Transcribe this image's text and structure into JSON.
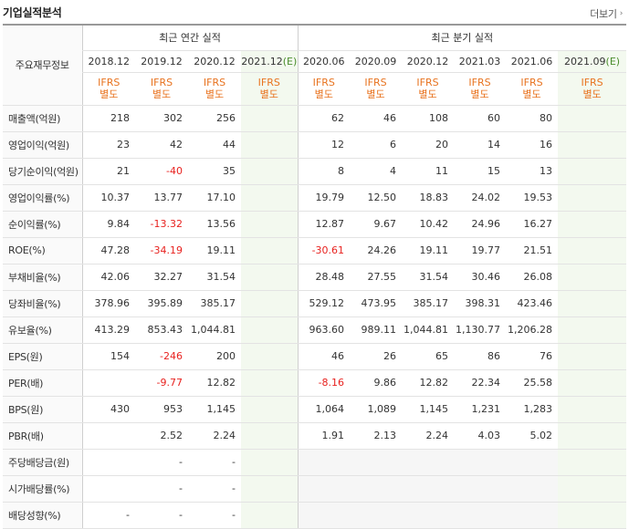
{
  "header": {
    "title": "기업실적분석",
    "more_label": "더보기",
    "more_icon": "chevron-right-icon"
  },
  "table": {
    "main_header": "주요재무정보",
    "annual_group": "최근 연간 실적",
    "quarter_group": "최근 분기 실적",
    "annual_periods": [
      "2018.12",
      "2019.12",
      "2020.12",
      "2021.12"
    ],
    "annual_est_mark": "(E)",
    "quarter_periods": [
      "2020.06",
      "2020.09",
      "2020.12",
      "2021.03",
      "2021.06",
      "2021.09"
    ],
    "quarter_est_mark": "(E)",
    "ifrs_line1": "IFRS",
    "ifrs_line2": "별도",
    "rows": [
      {
        "label": "매출액(억원)",
        "annual": [
          "218",
          "302",
          "256",
          ""
        ],
        "quarter": [
          "62",
          "46",
          "108",
          "60",
          "80",
          ""
        ]
      },
      {
        "label": "영업이익(억원)",
        "annual": [
          "23",
          "42",
          "44",
          ""
        ],
        "quarter": [
          "12",
          "6",
          "20",
          "14",
          "16",
          ""
        ]
      },
      {
        "label": "당기순이익(억원)",
        "annual": [
          "21",
          "-40",
          "35",
          ""
        ],
        "quarter": [
          "8",
          "4",
          "11",
          "15",
          "13",
          ""
        ]
      },
      {
        "label": "영업이익률(%)",
        "annual": [
          "10.37",
          "13.77",
          "17.10",
          ""
        ],
        "quarter": [
          "19.79",
          "12.50",
          "18.83",
          "24.02",
          "19.53",
          ""
        ]
      },
      {
        "label": "순이익률(%)",
        "annual": [
          "9.84",
          "-13.32",
          "13.56",
          ""
        ],
        "quarter": [
          "12.87",
          "9.67",
          "10.42",
          "24.96",
          "16.27",
          ""
        ]
      },
      {
        "label": "ROE(%)",
        "annual": [
          "47.28",
          "-34.19",
          "19.11",
          ""
        ],
        "quarter": [
          "-30.61",
          "24.26",
          "19.11",
          "19.77",
          "21.51",
          ""
        ]
      },
      {
        "label": "부채비율(%)",
        "annual": [
          "42.06",
          "32.27",
          "31.54",
          ""
        ],
        "quarter": [
          "28.48",
          "27.55",
          "31.54",
          "30.46",
          "26.08",
          ""
        ]
      },
      {
        "label": "당좌비율(%)",
        "annual": [
          "378.96",
          "395.89",
          "385.17",
          ""
        ],
        "quarter": [
          "529.12",
          "473.95",
          "385.17",
          "398.31",
          "423.46",
          ""
        ]
      },
      {
        "label": "유보율(%)",
        "annual": [
          "413.29",
          "853.43",
          "1,044.81",
          ""
        ],
        "quarter": [
          "963.60",
          "989.11",
          "1,044.81",
          "1,130.77",
          "1,206.28",
          ""
        ]
      },
      {
        "label": "EPS(원)",
        "annual": [
          "154",
          "-246",
          "200",
          ""
        ],
        "quarter": [
          "46",
          "26",
          "65",
          "86",
          "76",
          ""
        ]
      },
      {
        "label": "PER(배)",
        "annual": [
          "",
          "-9.77",
          "12.82",
          ""
        ],
        "quarter": [
          "-8.16",
          "9.86",
          "12.82",
          "22.34",
          "25.58",
          ""
        ]
      },
      {
        "label": "BPS(원)",
        "annual": [
          "430",
          "953",
          "1,145",
          ""
        ],
        "quarter": [
          "1,064",
          "1,089",
          "1,145",
          "1,231",
          "1,283",
          ""
        ]
      },
      {
        "label": "PBR(배)",
        "annual": [
          "",
          "2.52",
          "2.24",
          ""
        ],
        "quarter": [
          "1.91",
          "2.13",
          "2.24",
          "4.03",
          "5.02",
          ""
        ]
      },
      {
        "label": "주당배당금(원)",
        "annual": [
          "",
          "-",
          "-",
          ""
        ],
        "quarter": [
          "",
          "",
          "",
          "",
          "",
          ""
        ]
      },
      {
        "label": "시가배당률(%)",
        "annual": [
          "",
          "-",
          "-",
          ""
        ],
        "quarter": [
          "",
          "",
          "",
          "",
          "",
          ""
        ]
      },
      {
        "label": "배당성향(%)",
        "annual": [
          "-",
          "-",
          "-",
          ""
        ],
        "quarter": [
          "",
          "",
          "",
          "",
          "",
          ""
        ]
      }
    ],
    "group_breaks": [
      3,
      6,
      9,
      13
    ],
    "colors": {
      "negative": "#e8221f",
      "ifrs": "#e8731f",
      "estimate_bg": "#f3f9ef",
      "estimate_mark": "#4a8d2c"
    }
  }
}
